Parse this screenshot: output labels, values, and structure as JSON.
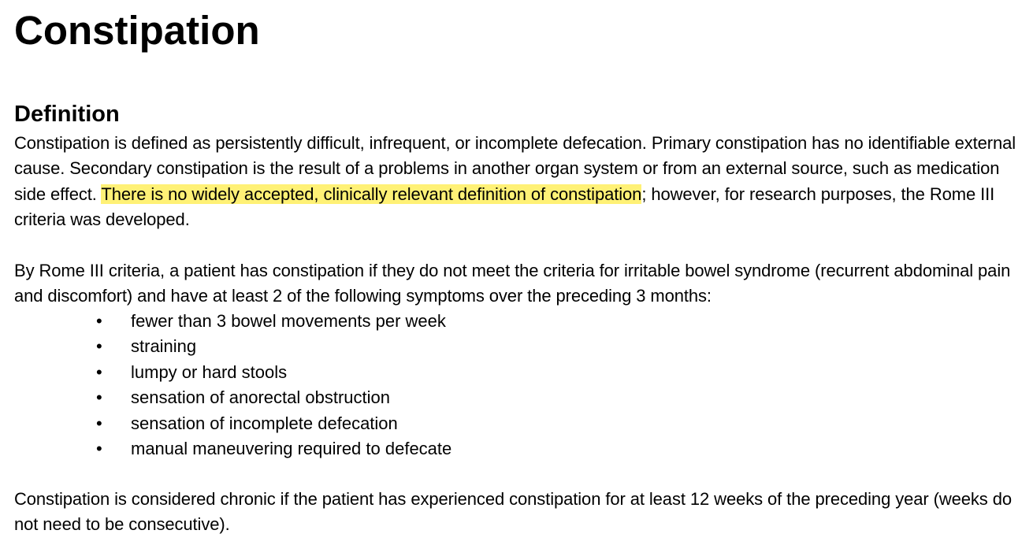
{
  "title": "Constipation",
  "section": {
    "heading": "Definition"
  },
  "paragraph1": {
    "before_highlight": "Constipation is defined as persistently difficult, infrequent, or incomplete defecation. Primary constipation has no identifiable external cause. Secondary constipation is the result of a problems in another organ system or from an external source, such as medication side effect. ",
    "highlight": "There is no widely accepted, clinically relevant definition of constipation",
    "after_highlight": "; however, for research purposes, the Rome III criteria was developed.",
    "highlight_color": "#fff176"
  },
  "paragraph2": "By Rome III criteria, a patient has constipation if they do not meet the criteria for irritable bowel syndrome (recurrent abdominal pain and discomfort) and have at least 2 of the following symptoms over the preceding 3 months:",
  "bullet_glyph": "•",
  "criteria": [
    "fewer than 3 bowel movements per week",
    "straining",
    "lumpy or hard stools",
    "sensation of anorectal obstruction",
    "sensation of incomplete defecation",
    "manual maneuvering required to defecate"
  ],
  "paragraph3": "Constipation is considered chronic if the patient has experienced constipation for at least 12 weeks of the preceding year (weeks do not need to be consecutive)."
}
